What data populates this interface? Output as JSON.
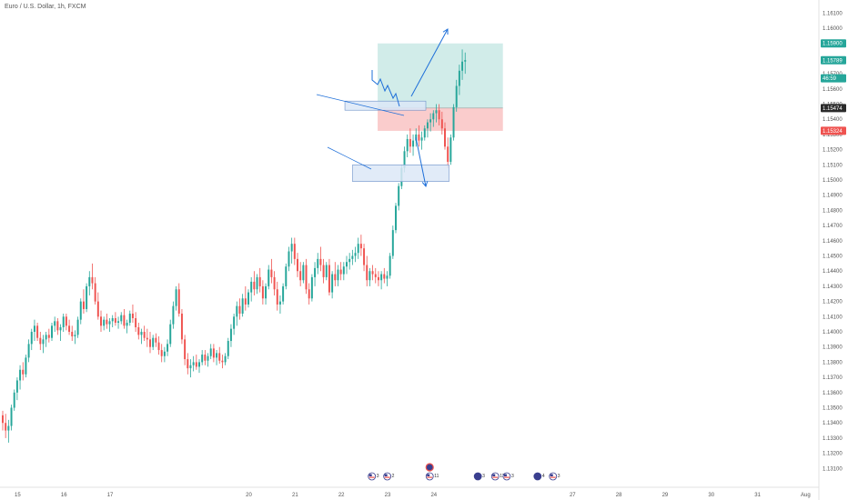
{
  "chart_data": {
    "type": "candlestick",
    "title": "Euro / U.S. Dollar, 1h, FXCM",
    "colors": {
      "up": "#26a69a",
      "down": "#ef5350",
      "axis_text": "#555555",
      "target_zone": "#b2dfdb",
      "stop_zone": "#f8bbbb",
      "annotation": "#1e6fd9",
      "box_fill": "#dce8f7",
      "badge_green": "#26a69a",
      "badge_dark": "#2b2b2b",
      "badge_red": "#ef5350"
    },
    "y_axis": {
      "min": 1.13,
      "max": 1.1615,
      "tick_labels": [
        "1.16100",
        "1.16000",
        "1.15900",
        "1.15800",
        "1.15700",
        "1.15600",
        "1.15500",
        "1.15400",
        "1.15300",
        "1.15200",
        "1.15100",
        "1.15000",
        "1.14900",
        "1.14800",
        "1.14700",
        "1.14600",
        "1.14500",
        "1.14400",
        "1.14300",
        "1.14200",
        "1.14100",
        "1.14000",
        "1.13900",
        "1.13800",
        "1.13700",
        "1.13600",
        "1.13500",
        "1.13400",
        "1.13300",
        "1.13200",
        "1.13100"
      ],
      "tick_values": [
        1.161,
        1.16,
        1.159,
        1.158,
        1.157,
        1.156,
        1.155,
        1.154,
        1.153,
        1.152,
        1.151,
        1.15,
        1.149,
        1.148,
        1.147,
        1.146,
        1.145,
        1.144,
        1.143,
        1.142,
        1.141,
        1.14,
        1.139,
        1.138,
        1.137,
        1.136,
        1.135,
        1.134,
        1.133,
        1.132,
        1.131
      ]
    },
    "x_axis": {
      "tick_labels": [
        "15",
        "16",
        "17",
        "20",
        "21",
        "22",
        "23",
        "24",
        "27",
        "28",
        "29",
        "30",
        "31",
        "Aug"
      ],
      "tick_hours": [
        9,
        33,
        57,
        129,
        153,
        177,
        201,
        225,
        297,
        321,
        345,
        369,
        393,
        417
      ],
      "total_hours": 425
    },
    "price_badges": [
      {
        "label": "1.15900",
        "value": 1.159,
        "color": "#26a69a"
      },
      {
        "label": "1.15789",
        "value": 1.15789,
        "color": "#26a69a"
      },
      {
        "label": "46:59",
        "value": 1.1567,
        "color": "#26a69a"
      },
      {
        "label": "1.15474",
        "value": 1.15474,
        "color": "#2b2b2b"
      },
      {
        "label": "1.15324",
        "value": 1.15324,
        "color": "#ef5350"
      }
    ],
    "position": {
      "entry": 1.15474,
      "target": 1.159,
      "stop": 1.15324,
      "start_hour": 196,
      "end_hour": 261
    },
    "zones": [
      {
        "name": "resistance-box",
        "hour_start": 179,
        "hour_end": 221,
        "high": 1.1552,
        "low": 1.1546
      },
      {
        "name": "support-box",
        "hour_start": 183,
        "hour_end": 233,
        "high": 1.151,
        "low": 1.1499
      }
    ],
    "events": [
      {
        "hour": 193,
        "flag": "us",
        "count": "3"
      },
      {
        "hour": 201,
        "flag": "us",
        "count": "2"
      },
      {
        "hour": 223,
        "flag": "us",
        "count": "11"
      },
      {
        "hour": 248,
        "flag": "jp",
        "count": "3"
      },
      {
        "hour": 257,
        "flag": "us",
        "count": "11"
      },
      {
        "hour": 263,
        "flag": "us",
        "count": "3"
      },
      {
        "hour": 279,
        "flag": "jp",
        "count": "4"
      },
      {
        "hour": 287,
        "flag": "us",
        "count": "3"
      }
    ],
    "candles": [
      [
        1.1345,
        1.1348,
        1.1335,
        1.134
      ],
      [
        1.134,
        1.1346,
        1.133,
        1.1335
      ],
      [
        1.1335,
        1.1342,
        1.1327,
        1.1338
      ],
      [
        1.1338,
        1.1352,
        1.1335,
        1.135
      ],
      [
        1.135,
        1.1362,
        1.1348,
        1.136
      ],
      [
        1.136,
        1.137,
        1.1355,
        1.1368
      ],
      [
        1.1368,
        1.1378,
        1.1362,
        1.1375
      ],
      [
        1.1375,
        1.138,
        1.1368,
        1.1372
      ],
      [
        1.1372,
        1.1385,
        1.137,
        1.1383
      ],
      [
        1.1383,
        1.1395,
        1.138,
        1.1392
      ],
      [
        1.1392,
        1.1402,
        1.1388,
        1.14
      ],
      [
        1.14,
        1.1408,
        1.1394,
        1.1404
      ],
      [
        1.1404,
        1.1406,
        1.1394,
        1.1396
      ],
      [
        1.1396,
        1.14,
        1.1388,
        1.1392
      ],
      [
        1.1392,
        1.1398,
        1.1386,
        1.1395
      ],
      [
        1.1395,
        1.14,
        1.139,
        1.1398
      ],
      [
        1.1398,
        1.1402,
        1.1393,
        1.1396
      ],
      [
        1.1396,
        1.1406,
        1.1394,
        1.1404
      ],
      [
        1.1404,
        1.141,
        1.14,
        1.1407
      ],
      [
        1.1407,
        1.1409,
        1.1398,
        1.1401
      ],
      [
        1.1401,
        1.1405,
        1.1394,
        1.1403
      ],
      [
        1.1403,
        1.1412,
        1.14,
        1.141
      ],
      [
        1.141,
        1.1412,
        1.1401,
        1.1404
      ],
      [
        1.1404,
        1.1408,
        1.1398,
        1.14
      ],
      [
        1.14,
        1.1404,
        1.1394,
        1.1397
      ],
      [
        1.1397,
        1.1401,
        1.1392,
        1.1398
      ],
      [
        1.1398,
        1.141,
        1.1396,
        1.1408
      ],
      [
        1.1408,
        1.1422,
        1.1405,
        1.142
      ],
      [
        1.142,
        1.1428,
        1.1412,
        1.1415
      ],
      [
        1.1415,
        1.1432,
        1.1413,
        1.143
      ],
      [
        1.143,
        1.144,
        1.1424,
        1.1436
      ],
      [
        1.1436,
        1.1445,
        1.1428,
        1.1432
      ],
      [
        1.1432,
        1.1436,
        1.1418,
        1.142
      ],
      [
        1.142,
        1.1426,
        1.1408,
        1.141
      ],
      [
        1.141,
        1.1414,
        1.14,
        1.1404
      ],
      [
        1.1404,
        1.141,
        1.1401,
        1.1408
      ],
      [
        1.1408,
        1.1412,
        1.1402,
        1.1405
      ],
      [
        1.1405,
        1.1409,
        1.14,
        1.1407
      ],
      [
        1.1407,
        1.1411,
        1.1403,
        1.1409
      ],
      [
        1.1409,
        1.1413,
        1.1404,
        1.1406
      ],
      [
        1.1406,
        1.141,
        1.1402,
        1.1407
      ],
      [
        1.1407,
        1.1413,
        1.1405,
        1.1411
      ],
      [
        1.1411,
        1.1415,
        1.1402,
        1.1404
      ],
      [
        1.1404,
        1.1408,
        1.1399,
        1.1406
      ],
      [
        1.1406,
        1.1414,
        1.1404,
        1.1412
      ],
      [
        1.1412,
        1.1418,
        1.1406,
        1.1409
      ],
      [
        1.1409,
        1.1413,
        1.14,
        1.1403
      ],
      [
        1.1403,
        1.1406,
        1.1395,
        1.1398
      ],
      [
        1.1398,
        1.1402,
        1.1392,
        1.14
      ],
      [
        1.14,
        1.1404,
        1.1394,
        1.1396
      ],
      [
        1.1396,
        1.1402,
        1.139,
        1.1395
      ],
      [
        1.1395,
        1.14,
        1.1386,
        1.139
      ],
      [
        1.139,
        1.1398,
        1.1388,
        1.1396
      ],
      [
        1.1396,
        1.1399,
        1.139,
        1.1393
      ],
      [
        1.1393,
        1.1397,
        1.1385,
        1.1388
      ],
      [
        1.1388,
        1.1392,
        1.138,
        1.1384
      ],
      [
        1.1384,
        1.139,
        1.138,
        1.1387
      ],
      [
        1.1387,
        1.1395,
        1.1384,
        1.1392
      ],
      [
        1.1392,
        1.1408,
        1.139,
        1.1405
      ],
      [
        1.1405,
        1.142,
        1.1402,
        1.1417
      ],
      [
        1.1417,
        1.143,
        1.1414,
        1.1428
      ],
      [
        1.1428,
        1.1432,
        1.141,
        1.1412
      ],
      [
        1.1412,
        1.1415,
        1.1392,
        1.1395
      ],
      [
        1.1395,
        1.1398,
        1.1378,
        1.1382
      ],
      [
        1.1382,
        1.1386,
        1.1372,
        1.1376
      ],
      [
        1.1376,
        1.1382,
        1.137,
        1.1378
      ],
      [
        1.1378,
        1.1384,
        1.1374,
        1.138
      ],
      [
        1.138,
        1.1385,
        1.1375,
        1.1377
      ],
      [
        1.1377,
        1.1382,
        1.1373,
        1.138
      ],
      [
        1.138,
        1.1388,
        1.1378,
        1.1385
      ],
      [
        1.1385,
        1.1388,
        1.1378,
        1.1381
      ],
      [
        1.1381,
        1.1386,
        1.1377,
        1.1384
      ],
      [
        1.1384,
        1.1392,
        1.1382,
        1.1389
      ],
      [
        1.1389,
        1.1392,
        1.138,
        1.1383
      ],
      [
        1.1383,
        1.1388,
        1.1378,
        1.1386
      ],
      [
        1.1386,
        1.139,
        1.1379,
        1.1381
      ],
      [
        1.1381,
        1.1385,
        1.1376,
        1.138
      ],
      [
        1.138,
        1.1386,
        1.1378,
        1.1384
      ],
      [
        1.1384,
        1.1396,
        1.1382,
        1.1394
      ],
      [
        1.1394,
        1.1405,
        1.139,
        1.1402
      ],
      [
        1.1402,
        1.1412,
        1.1398,
        1.141
      ],
      [
        1.141,
        1.142,
        1.1404,
        1.1417
      ],
      [
        1.1417,
        1.1422,
        1.1408,
        1.1412
      ],
      [
        1.1412,
        1.1425,
        1.141,
        1.1422
      ],
      [
        1.1422,
        1.143,
        1.1414,
        1.1418
      ],
      [
        1.1418,
        1.1428,
        1.1416,
        1.1426
      ],
      [
        1.1426,
        1.1436,
        1.142,
        1.1433
      ],
      [
        1.1433,
        1.144,
        1.1424,
        1.1428
      ],
      [
        1.1428,
        1.1438,
        1.1425,
        1.1436
      ],
      [
        1.1436,
        1.1442,
        1.1426,
        1.143
      ],
      [
        1.143,
        1.1434,
        1.1418,
        1.1422
      ],
      [
        1.1422,
        1.1432,
        1.1418,
        1.143
      ],
      [
        1.143,
        1.1444,
        1.1428,
        1.1441
      ],
      [
        1.1441,
        1.1448,
        1.1432,
        1.1436
      ],
      [
        1.1436,
        1.144,
        1.1424,
        1.1428
      ],
      [
        1.1428,
        1.1433,
        1.1414,
        1.1418
      ],
      [
        1.1418,
        1.1424,
        1.1412,
        1.142
      ],
      [
        1.142,
        1.1432,
        1.1418,
        1.143
      ],
      [
        1.143,
        1.1445,
        1.1428,
        1.1443
      ],
      [
        1.1443,
        1.1456,
        1.144,
        1.1453
      ],
      [
        1.1453,
        1.1462,
        1.1445,
        1.1458
      ],
      [
        1.1458,
        1.1462,
        1.1444,
        1.1448
      ],
      [
        1.1448,
        1.1452,
        1.1436,
        1.144
      ],
      [
        1.144,
        1.1446,
        1.143,
        1.1434
      ],
      [
        1.1434,
        1.1446,
        1.1432,
        1.1444
      ],
      [
        1.1444,
        1.1448,
        1.1425,
        1.1428
      ],
      [
        1.1428,
        1.1432,
        1.1418,
        1.1422
      ],
      [
        1.1422,
        1.1438,
        1.142,
        1.1436
      ],
      [
        1.1436,
        1.1446,
        1.143,
        1.1442
      ],
      [
        1.1442,
        1.1452,
        1.1438,
        1.1448
      ],
      [
        1.1448,
        1.1456,
        1.144,
        1.1444
      ],
      [
        1.1444,
        1.1448,
        1.1432,
        1.1436
      ],
      [
        1.1436,
        1.1446,
        1.1434,
        1.1444
      ],
      [
        1.1444,
        1.1448,
        1.1424,
        1.1426
      ],
      [
        1.1426,
        1.144,
        1.1422,
        1.1438
      ],
      [
        1.1438,
        1.1446,
        1.143,
        1.1434
      ],
      [
        1.1434,
        1.1444,
        1.143,
        1.1441
      ],
      [
        1.1441,
        1.1446,
        1.1434,
        1.1438
      ],
      [
        1.1438,
        1.1446,
        1.1434,
        1.1443
      ],
      [
        1.1443,
        1.145,
        1.1438,
        1.1446
      ],
      [
        1.1446,
        1.1452,
        1.1441,
        1.1448
      ],
      [
        1.1448,
        1.1454,
        1.1444,
        1.145
      ],
      [
        1.145,
        1.1456,
        1.1446,
        1.1452
      ],
      [
        1.1452,
        1.1462,
        1.1448,
        1.1458
      ],
      [
        1.1458,
        1.1464,
        1.145,
        1.1455
      ],
      [
        1.1455,
        1.1458,
        1.144,
        1.1444
      ],
      [
        1.1444,
        1.145,
        1.143,
        1.1434
      ],
      [
        1.1434,
        1.1442,
        1.143,
        1.144
      ],
      [
        1.144,
        1.1444,
        1.1434,
        1.1438
      ],
      [
        1.1438,
        1.1442,
        1.1432,
        1.1436
      ],
      [
        1.1436,
        1.144,
        1.143,
        1.1434
      ],
      [
        1.1434,
        1.144,
        1.1428,
        1.1438
      ],
      [
        1.1438,
        1.1442,
        1.1432,
        1.1435
      ],
      [
        1.1435,
        1.144,
        1.143,
        1.1437
      ],
      [
        1.1437,
        1.1452,
        1.1435,
        1.145
      ],
      [
        1.145,
        1.147,
        1.1448,
        1.1467
      ],
      [
        1.1467,
        1.1485,
        1.1465,
        1.1483
      ],
      [
        1.1483,
        1.1498,
        1.148,
        1.1496
      ],
      [
        1.1496,
        1.151,
        1.1494,
        1.1508
      ],
      [
        1.1508,
        1.1522,
        1.1505,
        1.1519
      ],
      [
        1.1519,
        1.153,
        1.1515,
        1.1527
      ],
      [
        1.1527,
        1.1534,
        1.1518,
        1.1522
      ],
      [
        1.1522,
        1.153,
        1.1516,
        1.1526
      ],
      [
        1.1526,
        1.1534,
        1.1522,
        1.153
      ],
      [
        1.153,
        1.1536,
        1.1522,
        1.1526
      ],
      [
        1.1526,
        1.1532,
        1.152,
        1.1528
      ],
      [
        1.1528,
        1.1536,
        1.1526,
        1.1534
      ],
      [
        1.1534,
        1.154,
        1.1528,
        1.1538
      ],
      [
        1.1538,
        1.1544,
        1.1532,
        1.154
      ],
      [
        1.154,
        1.1546,
        1.1535,
        1.1544
      ],
      [
        1.1544,
        1.155,
        1.1538,
        1.1546
      ],
      [
        1.1546,
        1.155,
        1.1536,
        1.154
      ],
      [
        1.154,
        1.1545,
        1.153,
        1.1534
      ],
      [
        1.1534,
        1.1538,
        1.152,
        1.1522
      ],
      [
        1.1522,
        1.1528,
        1.1508,
        1.1512
      ],
      [
        1.1512,
        1.153,
        1.151,
        1.1528
      ],
      [
        1.1528,
        1.155,
        1.1526,
        1.1548
      ],
      [
        1.1548,
        1.1566,
        1.1545,
        1.1562
      ],
      [
        1.1562,
        1.1576,
        1.1556,
        1.1572
      ],
      [
        1.1572,
        1.1586,
        1.1566,
        1.1578
      ],
      [
        1.1578,
        1.1584,
        1.157,
        1.1579
      ]
    ],
    "candle_start_hour": 0,
    "candle_step_hours": 1.5
  }
}
